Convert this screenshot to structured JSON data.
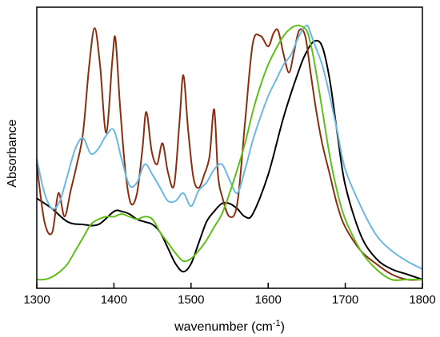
{
  "chart_data": {
    "type": "line",
    "title": "",
    "xlabel": "wavenumber (cm",
    "xlabel_sup": "-1",
    "xlabel_close": ")",
    "ylabel": "Absorbance",
    "xlim": [
      1300,
      1800
    ],
    "ylim": [
      0,
      1
    ],
    "x_ticks": [
      "1300",
      "1400",
      "1500",
      "1600",
      "1700",
      "1800"
    ],
    "y_ticks_shown": false,
    "grid": false,
    "legend": "none",
    "series": [
      {
        "color": "#000000",
        "x": [
          1300,
          1320,
          1340,
          1360,
          1380,
          1400,
          1410,
          1420,
          1430,
          1440,
          1450,
          1460,
          1470,
          1480,
          1490,
          1500,
          1510,
          1520,
          1530,
          1540,
          1550,
          1560,
          1570,
          1580,
          1600,
          1620,
          1640,
          1650,
          1660,
          1670,
          1680,
          1690,
          1700,
          1720,
          1740,
          1760,
          1780,
          1800
        ],
        "y": [
          0.31,
          0.27,
          0.22,
          0.21,
          0.21,
          0.26,
          0.26,
          0.25,
          0.23,
          0.22,
          0.21,
          0.18,
          0.12,
          0.06,
          0.03,
          0.06,
          0.14,
          0.22,
          0.26,
          0.29,
          0.29,
          0.27,
          0.24,
          0.25,
          0.4,
          0.62,
          0.8,
          0.87,
          0.91,
          0.89,
          0.76,
          0.55,
          0.36,
          0.17,
          0.08,
          0.04,
          0.02,
          0.0
        ]
      },
      {
        "color": "#8b2e10",
        "x": [
          1300,
          1310,
          1320,
          1328,
          1336,
          1344,
          1352,
          1360,
          1368,
          1375,
          1382,
          1390,
          1398,
          1402,
          1408,
          1415,
          1422,
          1430,
          1437,
          1442,
          1449,
          1456,
          1463,
          1470,
          1478,
          1485,
          1490,
          1496,
          1503,
          1510,
          1517,
          1524,
          1530,
          1535,
          1541,
          1550,
          1560,
          1570,
          1580,
          1590,
          1600,
          1607,
          1613,
          1620,
          1627,
          1633,
          1640,
          1648,
          1655,
          1662,
          1670,
          1680,
          1690,
          1700,
          1720,
          1740,
          1760,
          1780,
          1800
        ],
        "y": [
          0.44,
          0.22,
          0.18,
          0.33,
          0.24,
          0.34,
          0.44,
          0.56,
          0.82,
          0.96,
          0.82,
          0.56,
          0.84,
          0.92,
          0.66,
          0.41,
          0.29,
          0.33,
          0.5,
          0.64,
          0.49,
          0.44,
          0.52,
          0.41,
          0.36,
          0.6,
          0.78,
          0.58,
          0.39,
          0.35,
          0.4,
          0.47,
          0.65,
          0.4,
          0.31,
          0.24,
          0.29,
          0.6,
          0.9,
          0.93,
          0.89,
          0.94,
          0.95,
          0.86,
          0.79,
          0.86,
          0.95,
          0.93,
          0.79,
          0.65,
          0.52,
          0.4,
          0.28,
          0.2,
          0.11,
          0.06,
          0.02,
          0.0,
          0.0
        ]
      },
      {
        "color": "#6bb8e0",
        "x": [
          1300,
          1310,
          1320,
          1330,
          1340,
          1350,
          1360,
          1370,
          1380,
          1390,
          1400,
          1410,
          1420,
          1430,
          1440,
          1450,
          1460,
          1470,
          1480,
          1490,
          1500,
          1510,
          1520,
          1530,
          1540,
          1550,
          1560,
          1570,
          1580,
          1590,
          1600,
          1610,
          1620,
          1630,
          1640,
          1650,
          1655,
          1660,
          1670,
          1680,
          1690,
          1700,
          1720,
          1740,
          1760,
          1780,
          1800
        ],
        "y": [
          0.46,
          0.33,
          0.27,
          0.3,
          0.4,
          0.5,
          0.54,
          0.48,
          0.5,
          0.55,
          0.57,
          0.46,
          0.36,
          0.37,
          0.44,
          0.4,
          0.35,
          0.3,
          0.3,
          0.33,
          0.28,
          0.34,
          0.37,
          0.42,
          0.44,
          0.38,
          0.33,
          0.42,
          0.53,
          0.62,
          0.7,
          0.76,
          0.82,
          0.86,
          0.93,
          0.97,
          0.94,
          0.9,
          0.82,
          0.7,
          0.56,
          0.42,
          0.28,
          0.17,
          0.11,
          0.07,
          0.04
        ]
      },
      {
        "color": "#5fbf1a",
        "x": [
          1300,
          1310,
          1320,
          1330,
          1340,
          1350,
          1360,
          1370,
          1380,
          1390,
          1400,
          1410,
          1420,
          1430,
          1440,
          1450,
          1460,
          1470,
          1480,
          1490,
          1500,
          1510,
          1520,
          1530,
          1540,
          1550,
          1560,
          1570,
          1580,
          1590,
          1600,
          1610,
          1620,
          1630,
          1640,
          1650,
          1655,
          1660,
          1670,
          1680,
          1690,
          1700,
          1720,
          1740,
          1760,
          1780,
          1800
        ],
        "y": [
          0.0,
          0.0,
          0.01,
          0.03,
          0.06,
          0.11,
          0.16,
          0.21,
          0.23,
          0.24,
          0.24,
          0.25,
          0.24,
          0.23,
          0.24,
          0.23,
          0.18,
          0.14,
          0.1,
          0.07,
          0.08,
          0.11,
          0.15,
          0.2,
          0.25,
          0.33,
          0.42,
          0.52,
          0.64,
          0.74,
          0.82,
          0.88,
          0.93,
          0.96,
          0.97,
          0.95,
          0.9,
          0.83,
          0.65,
          0.47,
          0.33,
          0.23,
          0.11,
          0.04,
          0.0,
          0.0,
          0.0
        ]
      }
    ]
  }
}
